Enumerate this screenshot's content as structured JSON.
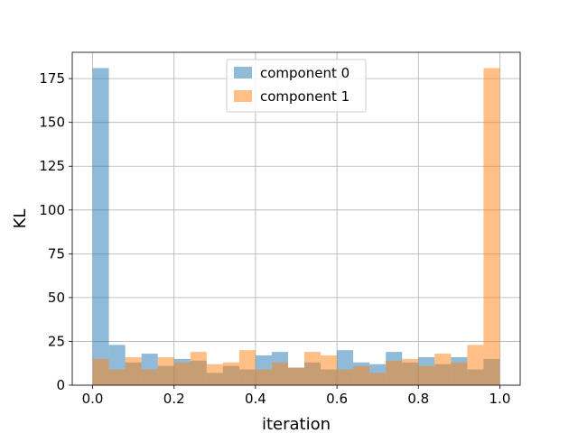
{
  "chart_data": {
    "type": "bar",
    "subtype": "overlapping histogram",
    "xlabel": "iteration",
    "ylabel": "KL",
    "xlim": [
      -0.05,
      1.05
    ],
    "ylim": [
      0,
      190
    ],
    "xticks": [
      "0.0",
      "0.2",
      "0.4",
      "0.6",
      "0.8",
      "1.0"
    ],
    "yticks": [
      "0",
      "25",
      "50",
      "75",
      "100",
      "125",
      "150",
      "175"
    ],
    "grid": true,
    "legend_position": "top-center",
    "bin_edges": [
      0.0,
      0.04,
      0.08,
      0.12,
      0.16,
      0.2,
      0.24,
      0.28,
      0.32,
      0.36,
      0.4,
      0.44,
      0.48,
      0.52,
      0.56,
      0.6,
      0.64,
      0.68,
      0.72,
      0.76,
      0.8,
      0.84,
      0.88,
      0.92,
      0.96,
      1.0
    ],
    "series": [
      {
        "name": "component 0",
        "color": "#1f77b4",
        "alpha": 0.5,
        "values": [
          181,
          23,
          13,
          18,
          11,
          15,
          14,
          7,
          11,
          9,
          17,
          19,
          10,
          13,
          9,
          20,
          13,
          12,
          19,
          13,
          16,
          12,
          16,
          9,
          15
        ]
      },
      {
        "name": "component 1",
        "color": "#ff7f0e",
        "alpha": 0.5,
        "values": [
          15,
          9,
          16,
          9,
          16,
          13,
          19,
          12,
          13,
          20,
          9,
          13,
          10,
          19,
          17,
          9,
          11,
          7,
          14,
          15,
          11,
          18,
          13,
          23,
          181
        ]
      }
    ]
  }
}
